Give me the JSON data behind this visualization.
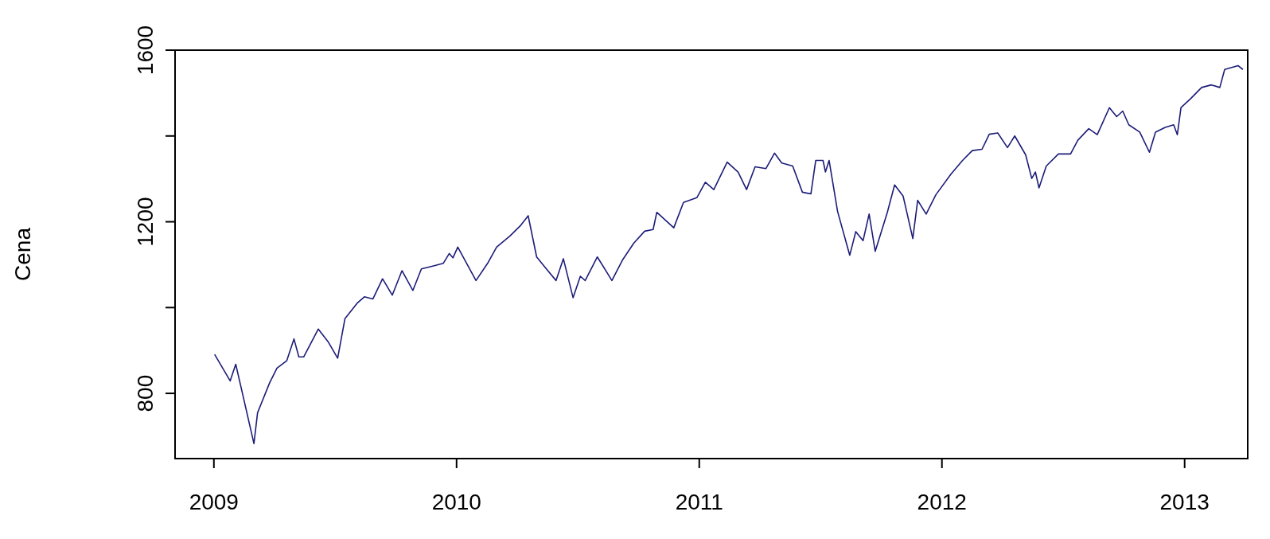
{
  "chart_data": {
    "type": "line",
    "ylabel": "Cena",
    "x": [
      2009.003,
      2009.067,
      2009.09,
      2009.11,
      2009.165,
      2009.18,
      2009.23,
      2009.26,
      2009.3,
      2009.33,
      2009.35,
      2009.37,
      2009.43,
      2009.47,
      2009.51,
      2009.54,
      2009.59,
      2009.62,
      2009.655,
      2009.695,
      2009.735,
      2009.775,
      2009.82,
      2009.855,
      2009.905,
      2009.945,
      2009.97,
      2009.985,
      2010.005,
      2010.08,
      2010.13,
      2010.165,
      2010.22,
      2010.265,
      2010.295,
      2010.33,
      2010.37,
      2010.41,
      2010.44,
      2010.48,
      2010.51,
      2010.53,
      2010.58,
      2010.64,
      2010.685,
      2010.73,
      2010.775,
      2010.81,
      2010.825,
      2010.895,
      2010.935,
      2010.99,
      2011.025,
      2011.06,
      2011.115,
      2011.16,
      2011.195,
      2011.23,
      2011.275,
      2011.31,
      2011.34,
      2011.385,
      2011.425,
      2011.46,
      2011.48,
      2011.51,
      2011.52,
      2011.535,
      2011.57,
      2011.62,
      2011.645,
      2011.675,
      2011.7,
      2011.725,
      2011.775,
      2011.805,
      2011.84,
      2011.88,
      2011.9,
      2011.935,
      2011.975,
      2012.037,
      2012.085,
      2012.125,
      2012.165,
      2012.195,
      2012.23,
      2012.27,
      2012.3,
      2012.345,
      2012.37,
      2012.385,
      2012.4,
      2012.43,
      2012.48,
      2012.53,
      2012.56,
      2012.605,
      2012.64,
      2012.69,
      2012.72,
      2012.745,
      2012.77,
      2012.815,
      2012.855,
      2012.88,
      2012.92,
      2012.955,
      2012.97,
      2012.985,
      2013.025,
      2013.07,
      2013.11,
      2013.145,
      2013.165,
      2013.22,
      2013.24
    ],
    "series": [
      {
        "color": "#1c1c78",
        "values": [
          891,
          829,
          868,
          819,
          683,
          755,
          825,
          859,
          876,
          927,
          885,
          885,
          950,
          921,
          882,
          974,
          1010,
          1025,
          1020,
          1067,
          1029,
          1086,
          1040,
          1090,
          1097,
          1103,
          1126,
          1116,
          1141,
          1063,
          1105,
          1141,
          1167,
          1192,
          1214,
          1118,
          1090,
          1063,
          1114,
          1023,
          1073,
          1063,
          1118,
          1063,
          1112,
          1150,
          1178,
          1182,
          1222,
          1186,
          1245,
          1256,
          1292,
          1275,
          1339,
          1316,
          1275,
          1328,
          1324,
          1360,
          1337,
          1330,
          1269,
          1265,
          1343,
          1343,
          1316,
          1343,
          1224,
          1122,
          1177,
          1156,
          1218,
          1131,
          1222,
          1286,
          1260,
          1161,
          1250,
          1218,
          1263,
          1311,
          1343,
          1366,
          1369,
          1404,
          1407,
          1373,
          1400,
          1356,
          1301,
          1316,
          1279,
          1330,
          1358,
          1358,
          1390,
          1417,
          1403,
          1466,
          1445,
          1458,
          1426,
          1409,
          1362,
          1409,
          1420,
          1426,
          1403,
          1466,
          1487,
          1513,
          1519,
          1513,
          1555,
          1564,
          1555
        ]
      }
    ],
    "xlim": [
      2008.84,
      2013.26
    ],
    "xticks": [
      2009,
      2010,
      2011,
      2012,
      2013
    ],
    "ylim": [
      648,
      1600
    ],
    "yticks": [
      800,
      {
        "value": 1000,
        "label": null
      },
      1200,
      {
        "value": 1400,
        "label": null
      },
      1600
    ],
    "grid": false,
    "legend": false,
    "marker": "none",
    "line_style": "solid"
  }
}
